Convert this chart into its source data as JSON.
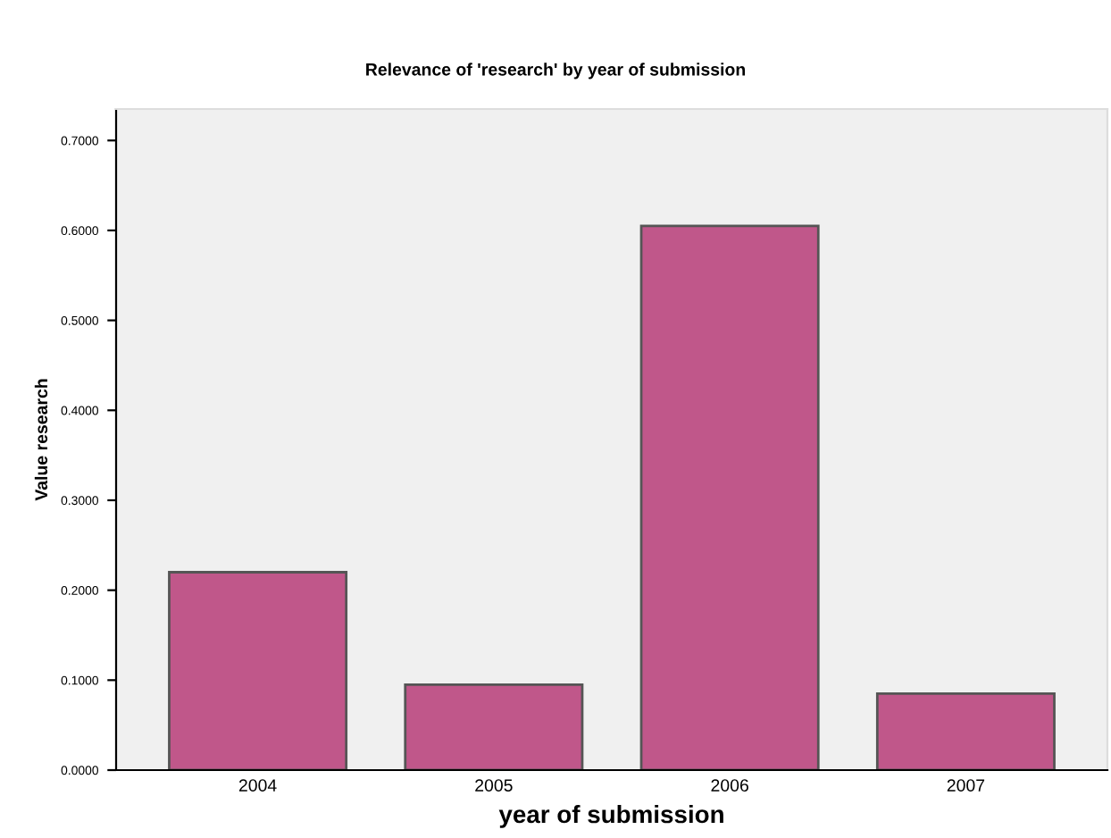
{
  "chart_data": {
    "type": "bar",
    "title": "Relevance of 'research' by year of submission",
    "xlabel": "year of submission",
    "ylabel": "Value research",
    "categories": [
      "2004",
      "2005",
      "2006",
      "2007"
    ],
    "values": [
      0.22,
      0.095,
      0.605,
      0.085
    ],
    "color": "#c0578a",
    "ylim": [
      0,
      0.735
    ],
    "yticks": [
      {
        "value": 0,
        "label": "0.0000"
      },
      {
        "value": 0.1,
        "label": "0.1000"
      },
      {
        "value": 0.2,
        "label": "0.2000"
      },
      {
        "value": 0.3,
        "label": "0.3000"
      },
      {
        "value": 0.4,
        "label": "0.4000"
      },
      {
        "value": 0.5,
        "label": "0.5000"
      },
      {
        "value": 0.6,
        "label": "0.6000"
      },
      {
        "value": 0.7,
        "label": "0.7000"
      }
    ],
    "grid": false
  }
}
